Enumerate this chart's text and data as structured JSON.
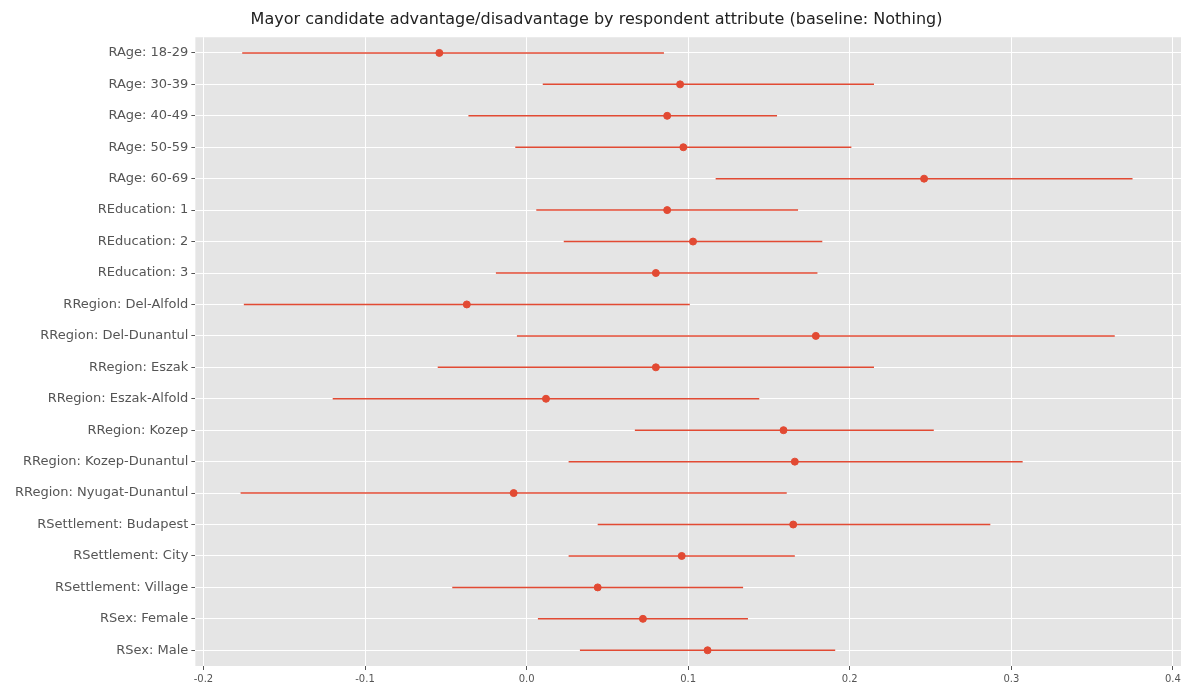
{
  "chart_data": {
    "type": "scatter",
    "orientation": "horizontal",
    "title": "Mayor candidate advantage/disadvantage by respondent attribute (baseline: Nothing)",
    "categories": [
      "RAge: 18-29",
      "RAge: 30-39",
      "RAge: 40-49",
      "RAge: 50-59",
      "RAge: 60-69",
      "REducation: 1",
      "REducation: 2",
      "REducation: 3",
      "RRegion: Del-Alfold",
      "RRegion: Del-Dunantul",
      "RRegion: Eszak",
      "RRegion: Eszak-Alfold",
      "RRegion: Kozep",
      "RRegion: Kozep-Dunantul",
      "RRegion: Nyugat-Dunantul",
      "RSettlement: Budapest",
      "RSettlement: City",
      "RSettlement: Village",
      "RSex: Female",
      "RSex: Male"
    ],
    "values": [
      -0.054,
      0.095,
      0.087,
      0.097,
      0.246,
      0.087,
      0.103,
      0.08,
      -0.037,
      0.179,
      0.08,
      0.012,
      0.159,
      0.166,
      -0.008,
      0.165,
      0.096,
      0.044,
      0.072,
      0.112
    ],
    "errors": [
      [
        -0.176,
        0.085
      ],
      [
        0.01,
        0.215
      ],
      [
        -0.036,
        0.155
      ],
      [
        -0.007,
        0.201
      ],
      [
        0.117,
        0.375
      ],
      [
        0.006,
        0.168
      ],
      [
        0.023,
        0.183
      ],
      [
        -0.019,
        0.18
      ],
      [
        -0.175,
        0.101
      ],
      [
        -0.006,
        0.364
      ],
      [
        -0.055,
        0.215
      ],
      [
        -0.12,
        0.144
      ],
      [
        0.067,
        0.252
      ],
      [
        0.026,
        0.307
      ],
      [
        -0.177,
        0.161
      ],
      [
        0.044,
        0.287
      ],
      [
        0.026,
        0.166
      ],
      [
        -0.046,
        0.134
      ],
      [
        0.007,
        0.137
      ],
      [
        0.033,
        0.191
      ]
    ],
    "color": "#e24a33",
    "marker": "circle",
    "grid": true,
    "legend": false,
    "xlim": [
      -0.205,
      0.405
    ],
    "xticks": [
      -0.2,
      -0.1,
      {
        "value": 0,
        "label": "0.0"
      },
      0.1,
      0.2,
      0.3,
      0.4
    ]
  }
}
